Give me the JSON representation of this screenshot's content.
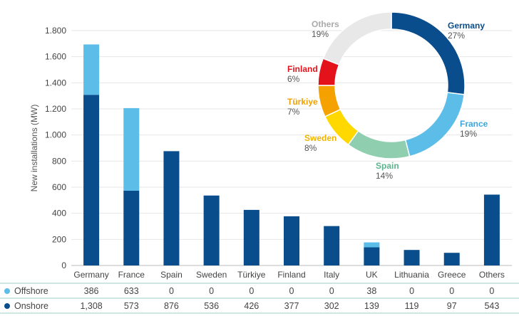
{
  "chart_data": [
    {
      "type": "bar",
      "stacked": true,
      "categories": [
        "Germany",
        "France",
        "Spain",
        "Sweden",
        "Türkiye",
        "Finland",
        "Italy",
        "UK",
        "Lithuania",
        "Greece",
        "Others"
      ],
      "series": [
        {
          "name": "Onshore",
          "color": "#0a4d8c",
          "values": [
            1308,
            573,
            876,
            536,
            426,
            377,
            302,
            139,
            119,
            97,
            543
          ],
          "labels": [
            "1,308",
            "573",
            "876",
            "536",
            "426",
            "377",
            "302",
            "139",
            "119",
            "97",
            "543"
          ]
        },
        {
          "name": "Offshore",
          "color": "#5bbde8",
          "values": [
            386,
            633,
            0,
            0,
            0,
            0,
            0,
            38,
            0,
            0,
            0
          ],
          "labels": [
            "386",
            "633",
            "0",
            "0",
            "0",
            "0",
            "0",
            "38",
            "0",
            "0",
            "0"
          ]
        }
      ],
      "ylabel": "New installations (MW)",
      "ylim": [
        0,
        1800
      ],
      "yticks": [
        0,
        200,
        400,
        600,
        800,
        1000,
        1200,
        1400,
        1600,
        1800
      ],
      "ytick_labels": [
        "0",
        "200",
        "400",
        "600",
        "800",
        "1.000",
        "1.200",
        "1.400",
        "1.600",
        "1.800"
      ],
      "grid": true
    },
    {
      "type": "pie",
      "donut": true,
      "slices": [
        {
          "name": "Germany",
          "value": 27,
          "label": "27%",
          "color": "#0a4d8c"
        },
        {
          "name": "France",
          "value": 19,
          "label": "19%",
          "color": "#5bbde8"
        },
        {
          "name": "Spain",
          "value": 14,
          "label": "14%",
          "color": "#8fcfb0"
        },
        {
          "name": "Sweden",
          "value": 8,
          "label": "8%",
          "color": "#ffd800"
        },
        {
          "name": "Türkiye",
          "value": 7,
          "label": "7%",
          "color": "#f5a100"
        },
        {
          "name": "Finland",
          "value": 6,
          "label": "6%",
          "color": "#e3121b"
        },
        {
          "name": "Others",
          "value": 19,
          "label": "19%",
          "color": "#e8e8e8"
        }
      ],
      "name_colors": {
        "Germany": "#0a4d8c",
        "France": "#3aa6dc",
        "Spain": "#5fb38e",
        "Sweden": "#f0b400",
        "Türkiye": "#f0a000",
        "Finland": "#e3121b",
        "Others": "#aaaaaa"
      }
    }
  ]
}
